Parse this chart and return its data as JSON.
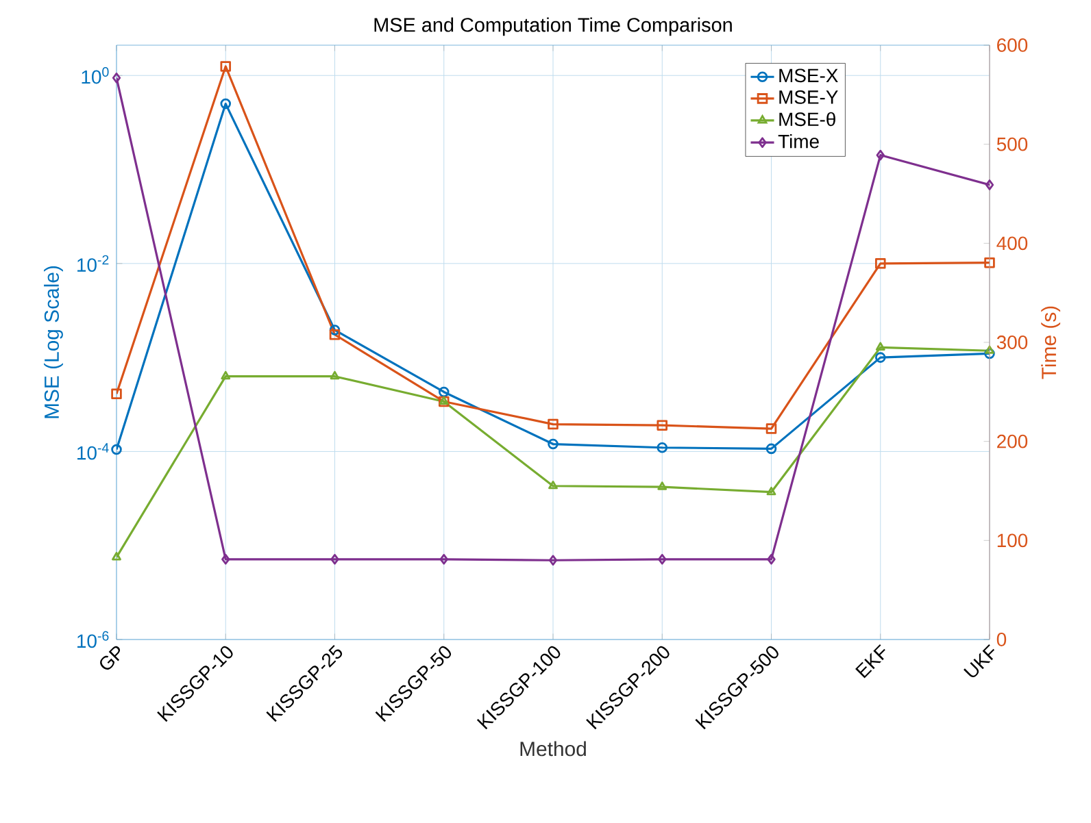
{
  "chart_data": {
    "type": "line",
    "title": "MSE and Computation Time Comparison",
    "xlabel": "Method",
    "ylabel": "MSE (Log Scale)",
    "y2label": "Time (s)",
    "categories": [
      "GP",
      "KISSGP-10",
      "KISSGP-25",
      "KISSGP-50",
      "KISSGP-100",
      "KISSGP-200",
      "KISSGP-500",
      "EKF",
      "UKF"
    ],
    "series": [
      {
        "name": "MSE-X",
        "color": "#0072bd",
        "marker": "circle",
        "values": [
          0.000105,
          0.5,
          0.00196,
          0.00043,
          0.00012,
          0.00011,
          0.000107,
          0.001,
          0.0011
        ]
      },
      {
        "name": "MSE-Y",
        "color": "#d95319",
        "marker": "square",
        "values": [
          0.00041,
          1.25,
          0.00175,
          0.00034,
          0.000195,
          0.00019,
          0.000175,
          0.01,
          0.0102
        ]
      },
      {
        "name": "MSE-θ",
        "color": "#77ac30",
        "marker": "triangle",
        "values": [
          7.5e-06,
          0.00063,
          0.00063,
          0.00034,
          4.3e-05,
          4.2e-05,
          3.7e-05,
          0.00128,
          0.00118
        ]
      },
      {
        "name": "Time",
        "color": "#7e2f8e",
        "marker": "diamond",
        "axis": "y2",
        "values": [
          567,
          81,
          81,
          81,
          80,
          81,
          81,
          489,
          459
        ]
      }
    ],
    "log": "y",
    "ylim": [
      1e-06,
      2.1
    ],
    "yticks": [
      {
        "value": 1e-06,
        "label": "10$^{-6}$"
      },
      {
        "value": 0.0001,
        "label": "10$^{-4}$"
      },
      {
        "value": 0.01,
        "label": "10$^{-2}$"
      },
      {
        "value": 1,
        "label": "10$^{0}$"
      }
    ],
    "y2lim": [
      0,
      600
    ],
    "y2ticks": [
      0,
      100,
      200,
      300,
      400,
      500,
      600
    ],
    "grid": true,
    "legend": "top right",
    "line_style": "solid"
  }
}
